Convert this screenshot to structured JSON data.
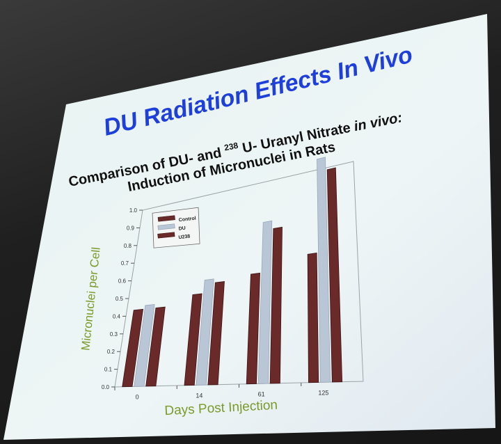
{
  "slide": {
    "title": "DU Radiation Effects In Vivo",
    "subtitle_line1_a": "Comparison of DU- and ",
    "subtitle_line1_sup": "238",
    "subtitle_line1_b": "U- Uranyl Nitrate ",
    "subtitle_line1_c": "in vivo:",
    "subtitle_line2": "Induction of Micronuclei in Rats"
  },
  "colors": {
    "screen_bg": "#eaf3f4",
    "control": "#6b2a2a",
    "du": "#b9c6d6",
    "u238": "#6b2a2a",
    "title": "#1f3fd9",
    "axis_title": "#7a9a2a"
  },
  "chart_data": {
    "type": "bar",
    "title": "",
    "xlabel": "Days Post Injection",
    "ylabel": "Micronuclei per Cell",
    "categories": [
      "0",
      "14",
      "61",
      "125"
    ],
    "ylim": [
      0.0,
      1.0
    ],
    "yticks": [
      "0.0",
      "0.1",
      "0.2",
      "0.3",
      "0.4",
      "0.5",
      "0.6",
      "0.7",
      "0.8",
      "0.9",
      "1.0"
    ],
    "legend_position": "top-left",
    "series": [
      {
        "name": "Control",
        "values": [
          0.43,
          0.48,
          0.55,
          0.61
        ]
      },
      {
        "name": "DU",
        "values": [
          0.45,
          0.55,
          0.8,
          1.05
        ]
      },
      {
        "name": "U238",
        "values": [
          0.43,
          0.53,
          0.76,
          0.99
        ]
      }
    ]
  }
}
